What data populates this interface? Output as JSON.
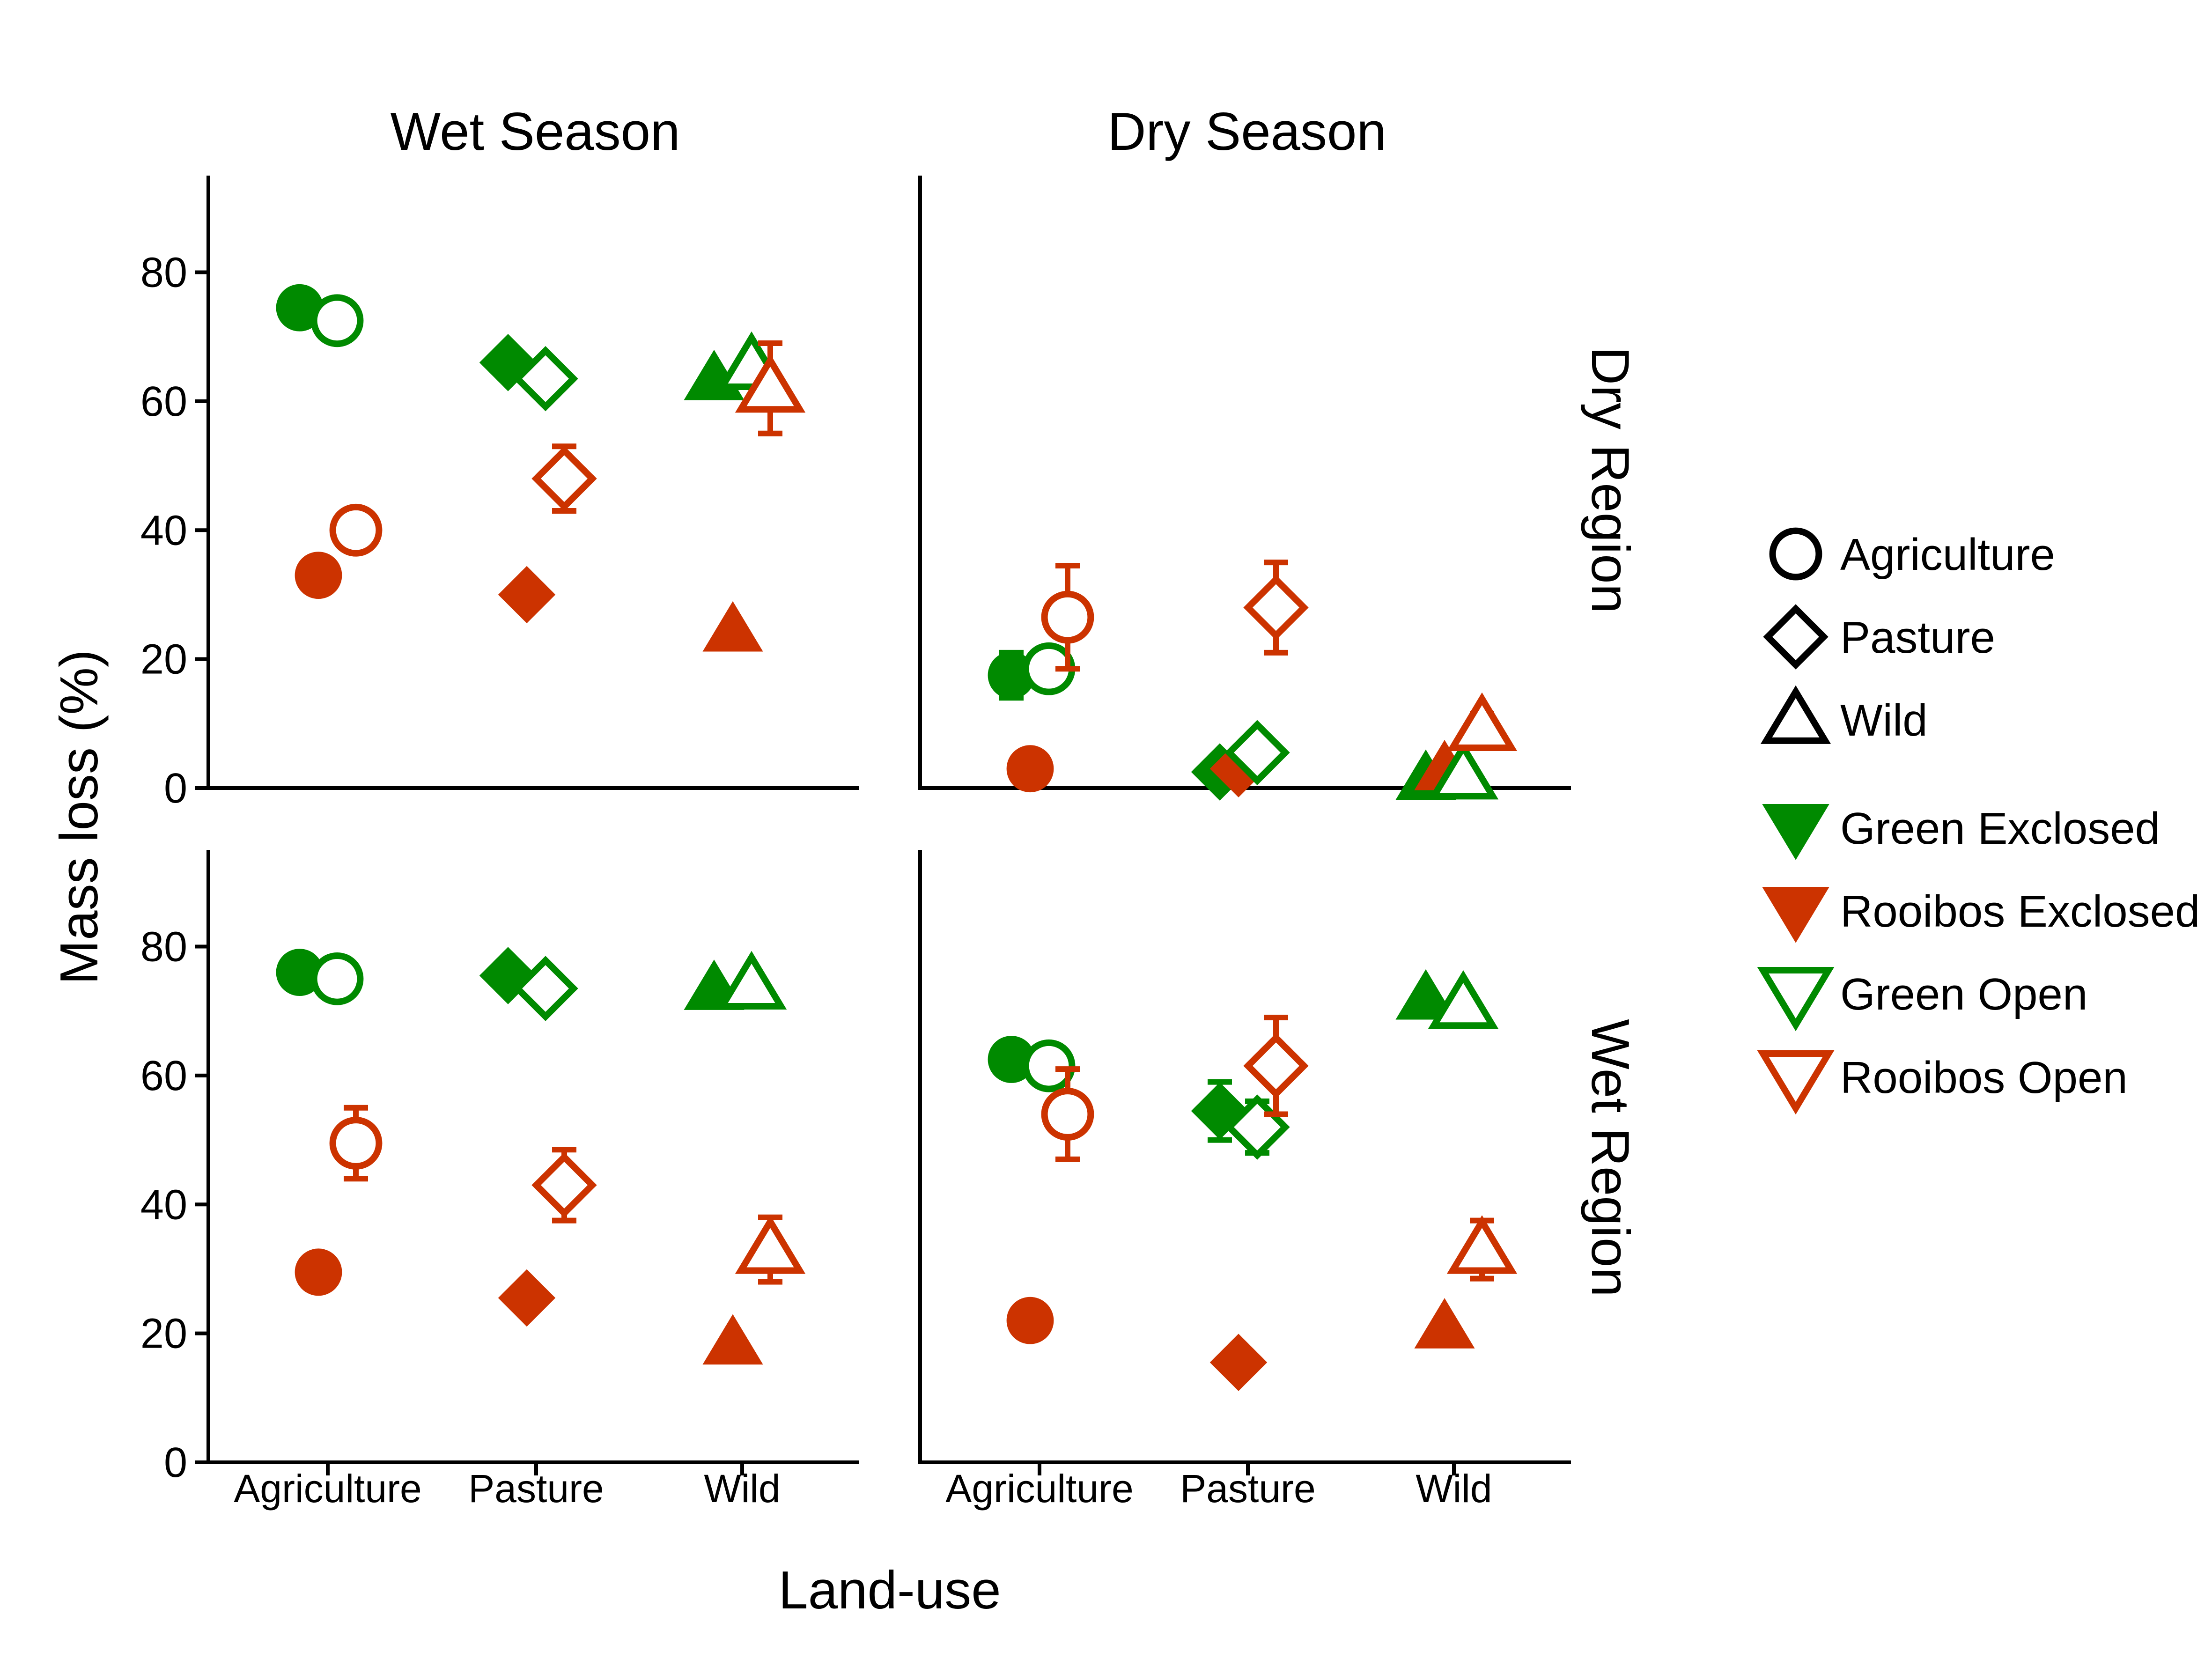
{
  "chart_data": {
    "type": "scatter",
    "xlabel": "Land-use",
    "ylabel": "Mass loss (%)",
    "categories": [
      "Agriculture",
      "Pasture",
      "Wild"
    ],
    "ylim": [
      0,
      95
    ],
    "yticks": [
      0,
      20,
      40,
      60,
      80
    ],
    "columns": [
      "Wet Season",
      "Dry Season"
    ],
    "rows": [
      "Dry Region",
      "Wet Region"
    ],
    "legend": {
      "position": "right",
      "shapes": [
        {
          "label": "Agriculture",
          "shape": "circle"
        },
        {
          "label": "Pasture",
          "shape": "diamond"
        },
        {
          "label": "Wild",
          "shape": "triangle"
        }
      ],
      "series": [
        {
          "label": "Green Exclosed",
          "color": "#008a00",
          "filled": true
        },
        {
          "label": "Rooibos Exclosed",
          "color": "#cc3300",
          "filled": true
        },
        {
          "label": "Green Open",
          "color": "#008a00",
          "filled": false
        },
        {
          "label": "Rooibos Open",
          "color": "#cc3300",
          "filled": false
        }
      ]
    },
    "colors": {
      "green": "#008a00",
      "rooibos": "#cc3300"
    },
    "panels": [
      {
        "column": "Wet Season",
        "row": "Dry Region",
        "series": [
          {
            "name": "Green Exclosed",
            "values": [
              74.5,
              66,
              63.5
            ],
            "err": [
              0,
              0,
              0
            ]
          },
          {
            "name": "Green Open",
            "values": [
              72.5,
              63.5,
              65.5
            ],
            "err": [
              0,
              0,
              0
            ]
          },
          {
            "name": "Rooibos Exclosed",
            "values": [
              33,
              30,
              24.5
            ],
            "err": [
              0,
              0,
              0
            ]
          },
          {
            "name": "Rooibos Open",
            "values": [
              40,
              48,
              62
            ],
            "err": [
              2.5,
              5,
              7
            ]
          }
        ]
      },
      {
        "column": "Dry Season",
        "row": "Dry Region",
        "series": [
          {
            "name": "Green Exclosed",
            "values": [
              17.5,
              2.5,
              1.5
            ],
            "err": [
              3.5,
              0,
              0
            ]
          },
          {
            "name": "Green Open",
            "values": [
              18.5,
              5.5,
              2
            ],
            "err": [
              3,
              0,
              0
            ]
          },
          {
            "name": "Rooibos Exclosed",
            "values": [
              3,
              3,
              3
            ],
            "err": [
              0,
              0,
              0
            ]
          },
          {
            "name": "Rooibos Open",
            "values": [
              26.5,
              28,
              9.5
            ],
            "err": [
              8,
              7,
              2
            ]
          }
        ]
      },
      {
        "column": "Wet Season",
        "row": "Wet Region",
        "series": [
          {
            "name": "Green Exclosed",
            "values": [
              76,
              75.5,
              73.5
            ],
            "err": [
              0,
              0,
              0
            ]
          },
          {
            "name": "Green Open",
            "values": [
              75,
              73.5,
              74
            ],
            "err": [
              0,
              0,
              0
            ]
          },
          {
            "name": "Rooibos Exclosed",
            "values": [
              29.5,
              25.5,
              18.5
            ],
            "err": [
              0,
              0,
              0
            ]
          },
          {
            "name": "Rooibos Open",
            "values": [
              49.5,
              43,
              33
            ],
            "err": [
              5.5,
              5.5,
              5
            ]
          }
        ]
      },
      {
        "column": "Dry Season",
        "row": "Wet Region",
        "series": [
          {
            "name": "Green Exclosed",
            "values": [
              62.5,
              54.5,
              72
            ],
            "err": [
              0,
              4.5,
              0
            ]
          },
          {
            "name": "Green Open",
            "values": [
              61.5,
              52,
              71
            ],
            "err": [
              0,
              4,
              0
            ]
          },
          {
            "name": "Rooibos Exclosed",
            "values": [
              22,
              15.5,
              21
            ],
            "err": [
              0,
              0,
              0
            ]
          },
          {
            "name": "Rooibos Open",
            "values": [
              54,
              61.5,
              33
            ],
            "err": [
              7,
              7.5,
              4.5
            ]
          }
        ]
      }
    ]
  }
}
